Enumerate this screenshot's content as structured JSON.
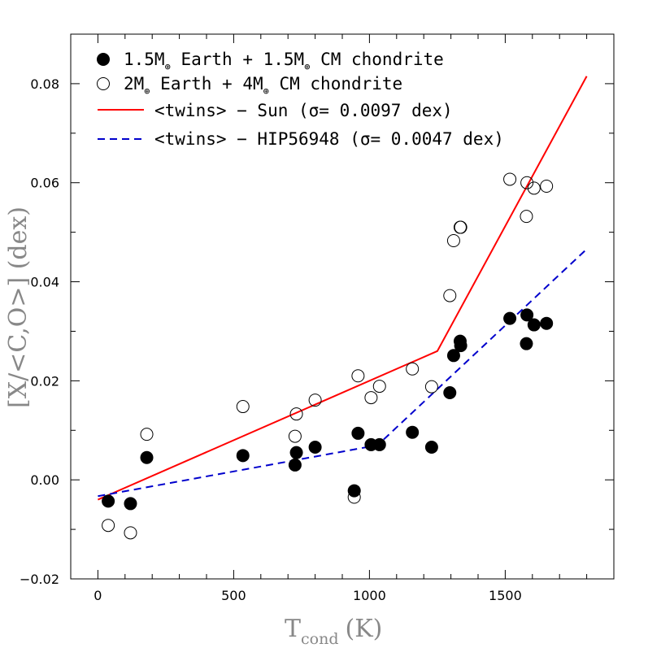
{
  "chart_data": {
    "type": "scatter",
    "xlabel": "T",
    "xlabel_sub": "cond",
    "xlabel_unit": "(K)",
    "ylabel": "[X/<C,O>] (dex)",
    "xlim": [
      -100,
      1900
    ],
    "ylim": [
      -0.02,
      0.09
    ],
    "x_ticks": [
      0,
      500,
      1000,
      1500
    ],
    "x_tick_labels": [
      "0",
      "500",
      "1000",
      "1500"
    ],
    "y_ticks": [
      -0.02,
      0.0,
      0.02,
      0.04,
      0.06,
      0.08
    ],
    "y_tick_labels": [
      "−0.02",
      "0.00",
      "0.02",
      "0.04",
      "0.06",
      "0.08"
    ],
    "grid": false,
    "legend_position": "top-left",
    "series": [
      {
        "name": "1.5M⊕ Earth + 1.5M⊕ CM chondrite",
        "legend_main": "1.5M",
        "legend_mid": " Earth + 1.5M",
        "legend_tail": " CM chondrite",
        "marker": "filled-circle",
        "color": "#000000",
        "points": [
          [
            38,
            -0.0043
          ],
          [
            120,
            -0.0048
          ],
          [
            180,
            0.0045
          ],
          [
            534,
            0.0049
          ],
          [
            726,
            0.003
          ],
          [
            731,
            0.0055
          ],
          [
            800,
            0.0066
          ],
          [
            944,
            -0.0022
          ],
          [
            958,
            0.0094
          ],
          [
            1006,
            0.0071
          ],
          [
            1037,
            0.0071
          ],
          [
            1158,
            0.0096
          ],
          [
            1229,
            0.0066
          ],
          [
            1296,
            0.0176
          ],
          [
            1310,
            0.0251
          ],
          [
            1334,
            0.028
          ],
          [
            1336,
            0.0271
          ],
          [
            1517,
            0.0326
          ],
          [
            1578,
            0.0275
          ],
          [
            1580,
            0.0333
          ],
          [
            1606,
            0.0313
          ],
          [
            1652,
            0.0316
          ]
        ]
      },
      {
        "name": "2M⊕ Earth + 4M⊕ CM chondrite",
        "legend_main": "2M",
        "legend_mid": " Earth + 4M",
        "legend_tail": " CM chondrite",
        "marker": "open-circle",
        "color": "#000000",
        "points": [
          [
            38,
            -0.0092
          ],
          [
            120,
            -0.0107
          ],
          [
            180,
            0.0092
          ],
          [
            534,
            0.0148
          ],
          [
            726,
            0.0088
          ],
          [
            731,
            0.0133
          ],
          [
            800,
            0.0161
          ],
          [
            944,
            -0.0035
          ],
          [
            958,
            0.021
          ],
          [
            1006,
            0.0166
          ],
          [
            1037,
            0.0189
          ],
          [
            1158,
            0.0224
          ],
          [
            1229,
            0.0188
          ],
          [
            1296,
            0.0372
          ],
          [
            1310,
            0.0483
          ],
          [
            1334,
            0.051
          ],
          [
            1336,
            0.051
          ],
          [
            1517,
            0.0607
          ],
          [
            1578,
            0.0532
          ],
          [
            1580,
            0.06
          ],
          [
            1606,
            0.0589
          ],
          [
            1652,
            0.0593
          ]
        ]
      },
      {
        "name": "<twins> − Sun (σ= 0.0097 dex)",
        "marker": "line-solid",
        "color": "#ff0000",
        "points": [
          [
            0,
            -0.004
          ],
          [
            1250,
            0.026
          ],
          [
            1800,
            0.0815
          ]
        ]
      },
      {
        "name": "<twins> − HIP56948 (σ= 0.0047 dex)",
        "marker": "line-dashed",
        "color": "#0000cc",
        "points": [
          [
            0,
            -0.0033
          ],
          [
            1030,
            0.007
          ],
          [
            1800,
            0.0466
          ]
        ]
      }
    ]
  }
}
